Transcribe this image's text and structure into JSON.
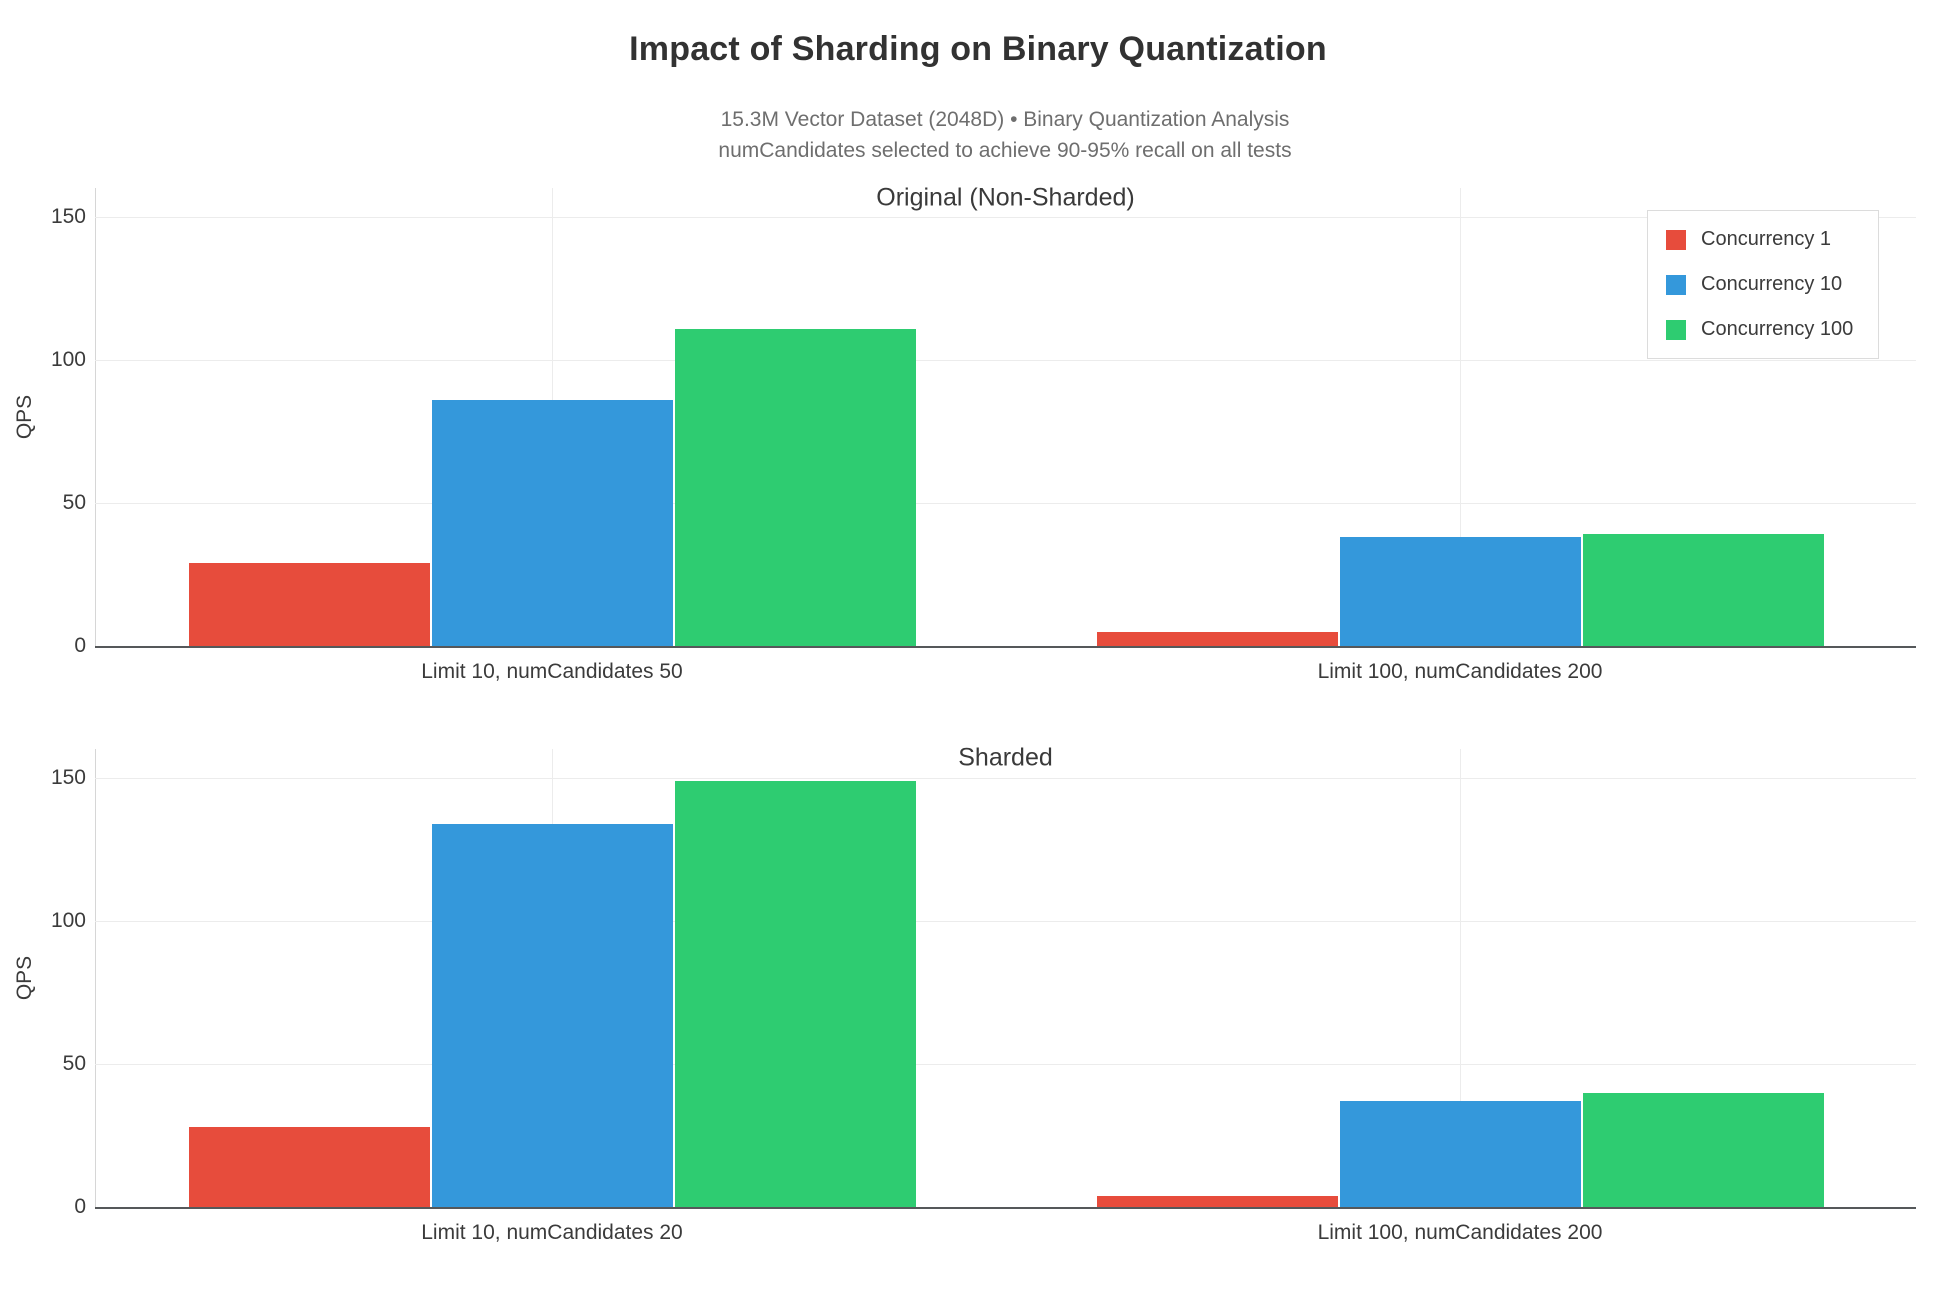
{
  "header": {
    "title": "Impact of Sharding on Binary Quantization",
    "subtitle_line1": "15.3M Vector Dataset (2048D) • Binary Quantization Analysis",
    "subtitle_line2": "numCandidates selected to achieve 90-95% recall on all tests"
  },
  "legend": {
    "items": [
      {
        "label": "Concurrency 1",
        "color": "#e74c3c"
      },
      {
        "label": "Concurrency 10",
        "color": "#3498db"
      },
      {
        "label": "Concurrency 100",
        "color": "#2ecc71"
      }
    ]
  },
  "chart_data": [
    {
      "type": "bar",
      "title": "Original (Non-Sharded)",
      "categories": [
        "Limit 10, numCandidates 50",
        "Limit 100, numCandidates 200"
      ],
      "series": [
        {
          "name": "Concurrency 1",
          "color": "#e74c3c",
          "values": [
            29,
            5
          ]
        },
        {
          "name": "Concurrency 10",
          "color": "#3498db",
          "values": [
            86,
            38
          ]
        },
        {
          "name": "Concurrency 100",
          "color": "#2ecc71",
          "values": [
            111,
            39
          ]
        }
      ],
      "xlabel": "",
      "ylabel": "QPS",
      "yticks": [
        0,
        50,
        100,
        150
      ],
      "ylim": [
        0,
        160
      ],
      "grid": true,
      "legend_position": "top-right"
    },
    {
      "type": "bar",
      "title": "Sharded",
      "categories": [
        "Limit 10, numCandidates 20",
        "Limit 100, numCandidates 200"
      ],
      "series": [
        {
          "name": "Concurrency 1",
          "color": "#e74c3c",
          "values": [
            28,
            4
          ]
        },
        {
          "name": "Concurrency 10",
          "color": "#3498db",
          "values": [
            134,
            37
          ]
        },
        {
          "name": "Concurrency 100",
          "color": "#2ecc71",
          "values": [
            149,
            40
          ]
        }
      ],
      "xlabel": "",
      "ylabel": "QPS",
      "yticks": [
        0,
        50,
        100,
        150
      ],
      "ylim": [
        0,
        160
      ],
      "grid": true,
      "legend_position": "none"
    }
  ]
}
